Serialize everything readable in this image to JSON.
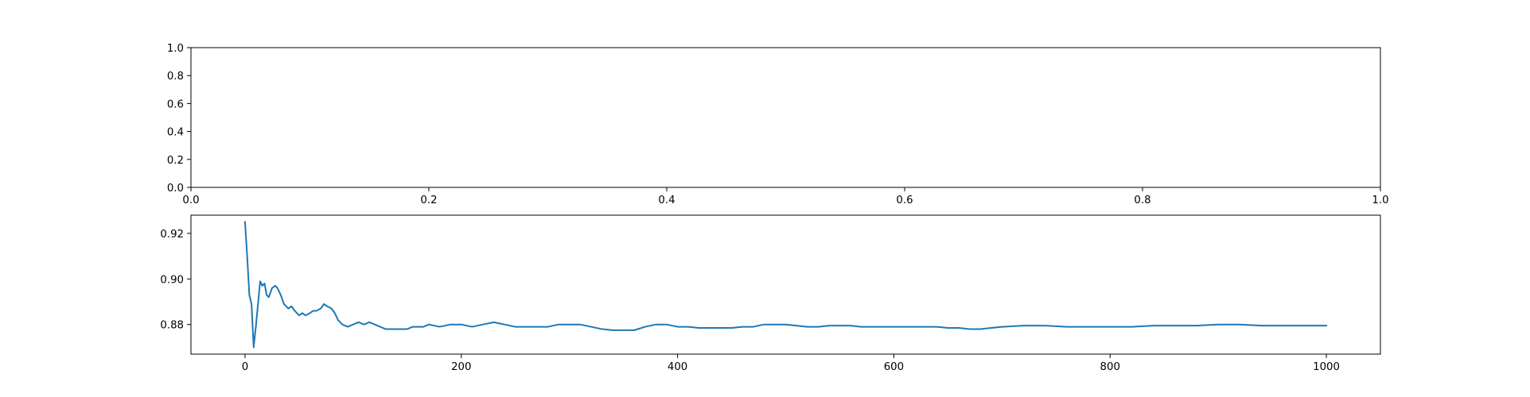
{
  "chart_data": [
    {
      "type": "line",
      "title": "",
      "xlabel": "",
      "ylabel": "",
      "xlim": [
        0.0,
        1.0
      ],
      "ylim": [
        0.0,
        1.0
      ],
      "xticks": [
        "0.0",
        "0.2",
        "0.4",
        "0.6",
        "0.8",
        "1.0"
      ],
      "yticks": [
        "0.0",
        "0.2",
        "0.4",
        "0.6",
        "0.8",
        "1.0"
      ],
      "grid": false,
      "series": []
    },
    {
      "type": "line",
      "title": "",
      "xlabel": "",
      "ylabel": "",
      "xlim": [
        -50,
        1050
      ],
      "ylim": [
        0.867,
        0.928
      ],
      "xticks": [
        "0",
        "200",
        "400",
        "600",
        "800",
        "1000"
      ],
      "yticks": [
        "0.88",
        "0.90",
        "0.92"
      ],
      "grid": false,
      "color": "#1f77b4",
      "series": [
        {
          "x": [
            0,
            2,
            4,
            6,
            8,
            10,
            12,
            14,
            16,
            18,
            20,
            22,
            25,
            28,
            30,
            33,
            36,
            40,
            43,
            46,
            50,
            53,
            56,
            60,
            63,
            66,
            70,
            73,
            76,
            80,
            83,
            86,
            90,
            95,
            100,
            105,
            110,
            115,
            120,
            125,
            130,
            135,
            140,
            145,
            150,
            155,
            160,
            165,
            170,
            180,
            190,
            200,
            210,
            220,
            230,
            240,
            250,
            260,
            270,
            280,
            290,
            300,
            310,
            320,
            330,
            340,
            350,
            360,
            370,
            380,
            390,
            400,
            410,
            420,
            430,
            440,
            450,
            460,
            470,
            480,
            490,
            500,
            510,
            520,
            530,
            540,
            550,
            560,
            570,
            580,
            590,
            600,
            610,
            620,
            630,
            640,
            650,
            660,
            670,
            680,
            690,
            700,
            720,
            740,
            760,
            780,
            800,
            820,
            840,
            860,
            880,
            900,
            920,
            940,
            960,
            980,
            1000
          ],
          "y": [
            0.925,
            0.91,
            0.893,
            0.889,
            0.87,
            0.879,
            0.889,
            0.899,
            0.897,
            0.898,
            0.893,
            0.892,
            0.896,
            0.897,
            0.896,
            0.893,
            0.889,
            0.887,
            0.888,
            0.886,
            0.884,
            0.885,
            0.884,
            0.885,
            0.886,
            0.886,
            0.887,
            0.889,
            0.888,
            0.887,
            0.885,
            0.882,
            0.88,
            0.879,
            0.88,
            0.881,
            0.88,
            0.881,
            0.88,
            0.879,
            0.878,
            0.878,
            0.878,
            0.878,
            0.878,
            0.879,
            0.879,
            0.879,
            0.88,
            0.879,
            0.88,
            0.88,
            0.879,
            0.88,
            0.881,
            0.88,
            0.879,
            0.879,
            0.879,
            0.879,
            0.88,
            0.88,
            0.88,
            0.879,
            0.878,
            0.8775,
            0.8775,
            0.8775,
            0.879,
            0.88,
            0.88,
            0.879,
            0.879,
            0.8785,
            0.8785,
            0.8785,
            0.8785,
            0.879,
            0.879,
            0.88,
            0.88,
            0.88,
            0.8795,
            0.879,
            0.879,
            0.8795,
            0.8795,
            0.8795,
            0.879,
            0.879,
            0.879,
            0.879,
            0.879,
            0.879,
            0.879,
            0.879,
            0.8785,
            0.8785,
            0.878,
            0.878,
            0.8785,
            0.879,
            0.8795,
            0.8795,
            0.879,
            0.879,
            0.879,
            0.879,
            0.8795,
            0.8795,
            0.8795,
            0.88,
            0.88,
            0.8795,
            0.8795,
            0.8795,
            0.8795
          ]
        }
      ]
    }
  ]
}
